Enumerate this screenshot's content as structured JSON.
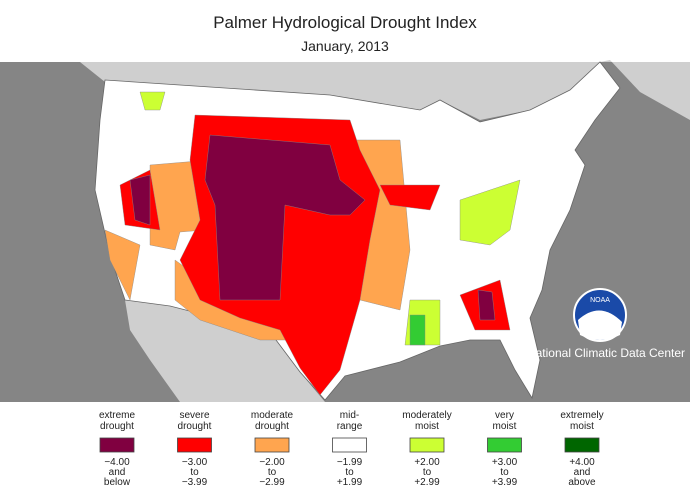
{
  "header": {
    "title": "Palmer Hydrological Drought Index",
    "subtitle": "January, 2013"
  },
  "credit": "National Climatic Data Center",
  "logo": "NOAA",
  "legend": [
    {
      "label": [
        "extreme",
        "drought"
      ],
      "range": [
        "−4.00",
        "and",
        "below"
      ],
      "color": "#800040"
    },
    {
      "label": [
        "severe",
        "drought"
      ],
      "range": [
        "−3.00",
        "to",
        "−3.99"
      ],
      "color": "#ff0000"
    },
    {
      "label": [
        "moderate",
        "drought"
      ],
      "range": [
        "−2.00",
        "to",
        "−2.99"
      ],
      "color": "#ffa54f"
    },
    {
      "label": [
        "mid-",
        "range"
      ],
      "range": [
        "−1.99",
        "to",
        "+1.99"
      ],
      "color": "#ffffff"
    },
    {
      "label": [
        "moderately",
        "moist"
      ],
      "range": [
        "+2.00",
        "to",
        "+2.99"
      ],
      "color": "#ccff33"
    },
    {
      "label": [
        "very",
        "moist"
      ],
      "range": [
        "+3.00",
        "to",
        "+3.99"
      ],
      "color": "#33cc33"
    },
    {
      "label": [
        "extremely",
        "moist"
      ],
      "range": [
        "+4.00",
        "and",
        "above"
      ],
      "color": "#006600"
    }
  ]
}
